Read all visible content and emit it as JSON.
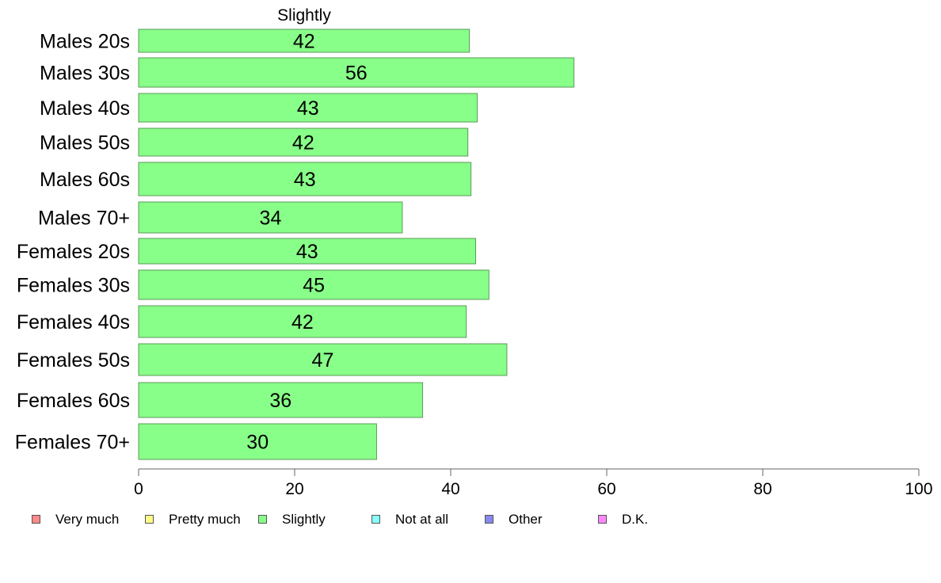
{
  "chart_data": {
    "type": "bar",
    "orientation": "horizontal",
    "title": "Slightly",
    "categories": [
      "Males 20s",
      "Males 30s",
      "Males 40s",
      "Males 50s",
      "Males 60s",
      "Males 70+",
      "Females 20s",
      "Females 30s",
      "Females 40s",
      "Females 50s",
      "Females 60s",
      "Females 70+"
    ],
    "series": [
      {
        "name": "Slightly",
        "values": [
          42.4,
          55.8,
          43.4,
          42.2,
          42.6,
          33.8,
          43.2,
          44.9,
          42.0,
          47.2,
          36.4,
          30.5
        ],
        "labels": [
          "42",
          "56",
          "43",
          "42",
          "43",
          "34",
          "43",
          "45",
          "42",
          "47",
          "36",
          "30"
        ],
        "color": "#88ff88"
      }
    ],
    "xlim": [
      0,
      100
    ],
    "xticks": [
      0,
      20,
      40,
      60,
      80,
      100
    ],
    "grid": false,
    "legend_position": "bottom",
    "legend": [
      {
        "label": "Very much",
        "color": "#ff8888"
      },
      {
        "label": "Pretty much",
        "color": "#ffff88"
      },
      {
        "label": "Slightly",
        "color": "#88ff88"
      },
      {
        "label": "Not at all",
        "color": "#88ffff"
      },
      {
        "label": "Other",
        "color": "#8888ee"
      },
      {
        "label": "D.K.",
        "color": "#ff88ff"
      }
    ]
  }
}
